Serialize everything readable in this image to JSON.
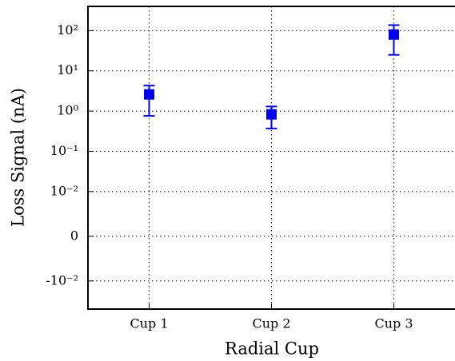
{
  "chart_data": {
    "type": "errorbar",
    "x_label": "Radial Cup",
    "y_label": "Loss Signal (nA)",
    "x": [
      1,
      2,
      3
    ],
    "xlim": [
      0.5,
      3.5
    ],
    "xticks": [
      {
        "value": 1,
        "label": "Cup 1"
      },
      {
        "value": 2,
        "label": "Cup 2"
      },
      {
        "value": 3,
        "label": "Cup 3"
      }
    ],
    "yscale": "symlog",
    "linthresh": 0.01,
    "ylim": [
      -0.05,
      400
    ],
    "yticks": [
      {
        "value": -0.01,
        "label": "-10⁻²"
      },
      0,
      {
        "value": 0.01,
        "label": "10⁻²"
      },
      {
        "value": 0.1,
        "label": "10⁻¹"
      },
      {
        "value": 1,
        "label": "10⁰"
      },
      {
        "value": 10,
        "label": "10¹"
      },
      {
        "value": 100,
        "label": "10²"
      }
    ],
    "grid": true,
    "color": "#0000ee",
    "values": [
      2.6,
      0.83,
      80
    ],
    "lower": [
      0.76,
      0.37,
      25
    ],
    "upper": [
      4.3,
      1.3,
      137
    ]
  }
}
